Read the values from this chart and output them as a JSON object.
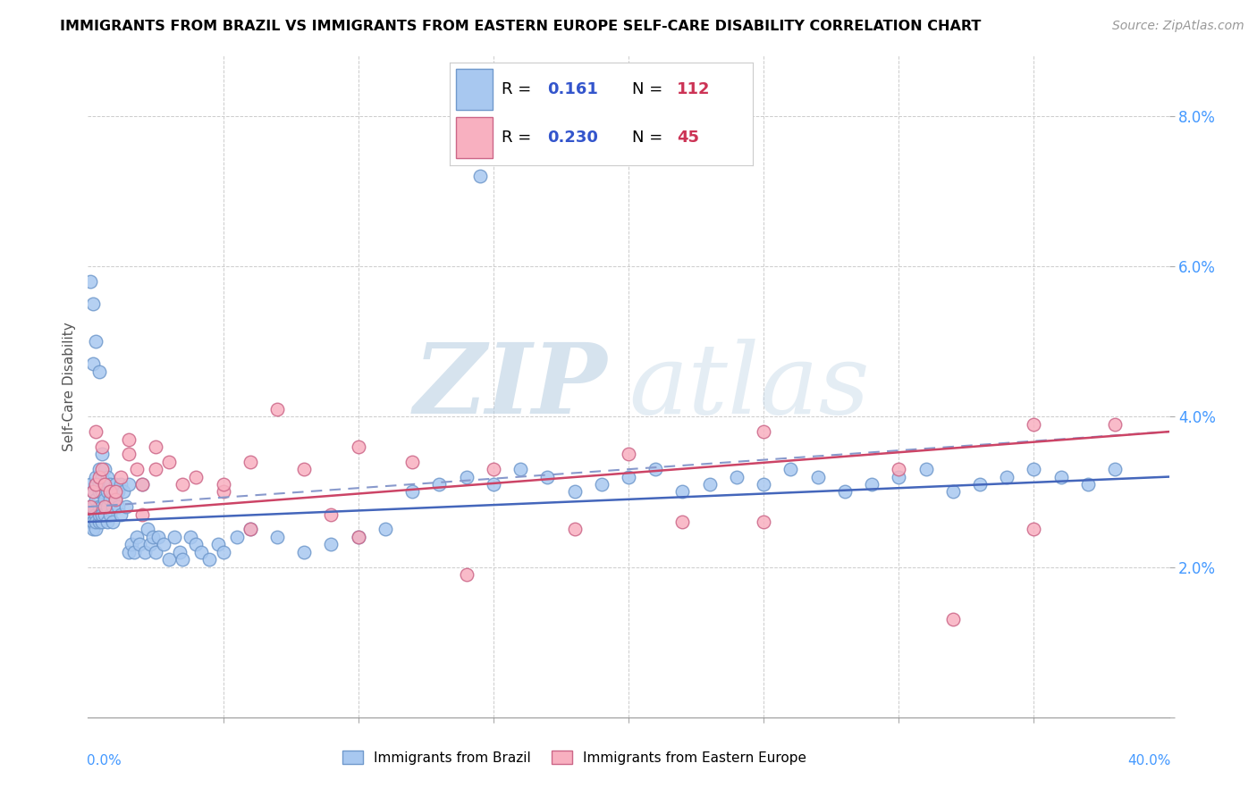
{
  "title": "IMMIGRANTS FROM BRAZIL VS IMMIGRANTS FROM EASTERN EUROPE SELF-CARE DISABILITY CORRELATION CHART",
  "source": "Source: ZipAtlas.com",
  "ylabel": "Self-Care Disability",
  "y_ticks": [
    0.0,
    0.02,
    0.04,
    0.06,
    0.08
  ],
  "y_tick_labels": [
    "",
    "2.0%",
    "4.0%",
    "6.0%",
    "8.0%"
  ],
  "xlim": [
    0.0,
    0.4
  ],
  "ylim": [
    0.0,
    0.088
  ],
  "brazil_color": "#a8c8f0",
  "brazil_edge_color": "#7099cc",
  "eastern_europe_color": "#f8b0c0",
  "eastern_europe_edge_color": "#cc6688",
  "brazil_R": 0.161,
  "brazil_N": 112,
  "eastern_europe_R": 0.23,
  "eastern_europe_N": 45,
  "trend_brazil_color": "#4466bb",
  "trend_eastern_color": "#cc4466",
  "trend_brazil_dashed_color": "#8899cc",
  "watermark": "ZIPatlas",
  "watermark_color_zip": "#b8cce8",
  "watermark_color_atlas": "#c8d8e8",
  "legend_R_color": "#3355cc",
  "legend_N_color": "#cc3355",
  "brazil_x": [
    0.001,
    0.001,
    0.001,
    0.001,
    0.002,
    0.002,
    0.002,
    0.002,
    0.002,
    0.003,
    0.003,
    0.003,
    0.003,
    0.003,
    0.003,
    0.004,
    0.004,
    0.004,
    0.004,
    0.004,
    0.004,
    0.005,
    0.005,
    0.005,
    0.005,
    0.005,
    0.005,
    0.006,
    0.006,
    0.006,
    0.006,
    0.007,
    0.007,
    0.007,
    0.007,
    0.008,
    0.008,
    0.008,
    0.009,
    0.009,
    0.009,
    0.01,
    0.01,
    0.011,
    0.011,
    0.012,
    0.012,
    0.013,
    0.014,
    0.015,
    0.015,
    0.016,
    0.017,
    0.018,
    0.019,
    0.02,
    0.021,
    0.022,
    0.023,
    0.024,
    0.025,
    0.026,
    0.028,
    0.03,
    0.032,
    0.034,
    0.035,
    0.038,
    0.04,
    0.042,
    0.045,
    0.048,
    0.05,
    0.055,
    0.06,
    0.07,
    0.08,
    0.09,
    0.1,
    0.11,
    0.12,
    0.13,
    0.14,
    0.15,
    0.16,
    0.17,
    0.18,
    0.19,
    0.2,
    0.21,
    0.22,
    0.23,
    0.24,
    0.25,
    0.26,
    0.27,
    0.28,
    0.29,
    0.3,
    0.31,
    0.32,
    0.33,
    0.34,
    0.35,
    0.36,
    0.37,
    0.002,
    0.003,
    0.004,
    0.145,
    0.001,
    0.002,
    0.38
  ],
  "brazil_y": [
    0.027,
    0.026,
    0.028,
    0.031,
    0.027,
    0.025,
    0.03,
    0.028,
    0.026,
    0.029,
    0.031,
    0.027,
    0.025,
    0.032,
    0.026,
    0.028,
    0.03,
    0.026,
    0.027,
    0.031,
    0.033,
    0.028,
    0.026,
    0.03,
    0.032,
    0.027,
    0.035,
    0.029,
    0.031,
    0.027,
    0.033,
    0.028,
    0.03,
    0.026,
    0.032,
    0.029,
    0.031,
    0.027,
    0.028,
    0.03,
    0.026,
    0.029,
    0.031,
    0.028,
    0.03,
    0.027,
    0.031,
    0.03,
    0.028,
    0.031,
    0.022,
    0.023,
    0.022,
    0.024,
    0.023,
    0.031,
    0.022,
    0.025,
    0.023,
    0.024,
    0.022,
    0.024,
    0.023,
    0.021,
    0.024,
    0.022,
    0.021,
    0.024,
    0.023,
    0.022,
    0.021,
    0.023,
    0.022,
    0.024,
    0.025,
    0.024,
    0.022,
    0.023,
    0.024,
    0.025,
    0.03,
    0.031,
    0.032,
    0.031,
    0.033,
    0.032,
    0.03,
    0.031,
    0.032,
    0.033,
    0.03,
    0.031,
    0.032,
    0.031,
    0.033,
    0.032,
    0.03,
    0.031,
    0.032,
    0.033,
    0.03,
    0.031,
    0.032,
    0.033,
    0.032,
    0.031,
    0.047,
    0.05,
    0.046,
    0.072,
    0.058,
    0.055,
    0.033
  ],
  "eastern_x": [
    0.001,
    0.002,
    0.003,
    0.004,
    0.005,
    0.006,
    0.008,
    0.01,
    0.012,
    0.015,
    0.018,
    0.02,
    0.025,
    0.03,
    0.04,
    0.05,
    0.06,
    0.07,
    0.08,
    0.1,
    0.12,
    0.15,
    0.2,
    0.25,
    0.3,
    0.35,
    0.003,
    0.006,
    0.01,
    0.02,
    0.035,
    0.06,
    0.1,
    0.18,
    0.25,
    0.35,
    0.005,
    0.015,
    0.025,
    0.05,
    0.09,
    0.14,
    0.22,
    0.32,
    0.38
  ],
  "eastern_y": [
    0.028,
    0.03,
    0.031,
    0.032,
    0.033,
    0.031,
    0.03,
    0.029,
    0.032,
    0.035,
    0.033,
    0.031,
    0.036,
    0.034,
    0.032,
    0.03,
    0.034,
    0.041,
    0.033,
    0.036,
    0.034,
    0.033,
    0.035,
    0.038,
    0.033,
    0.039,
    0.038,
    0.028,
    0.03,
    0.027,
    0.031,
    0.025,
    0.024,
    0.025,
    0.026,
    0.025,
    0.036,
    0.037,
    0.033,
    0.031,
    0.027,
    0.019,
    0.026,
    0.013,
    0.039
  ]
}
